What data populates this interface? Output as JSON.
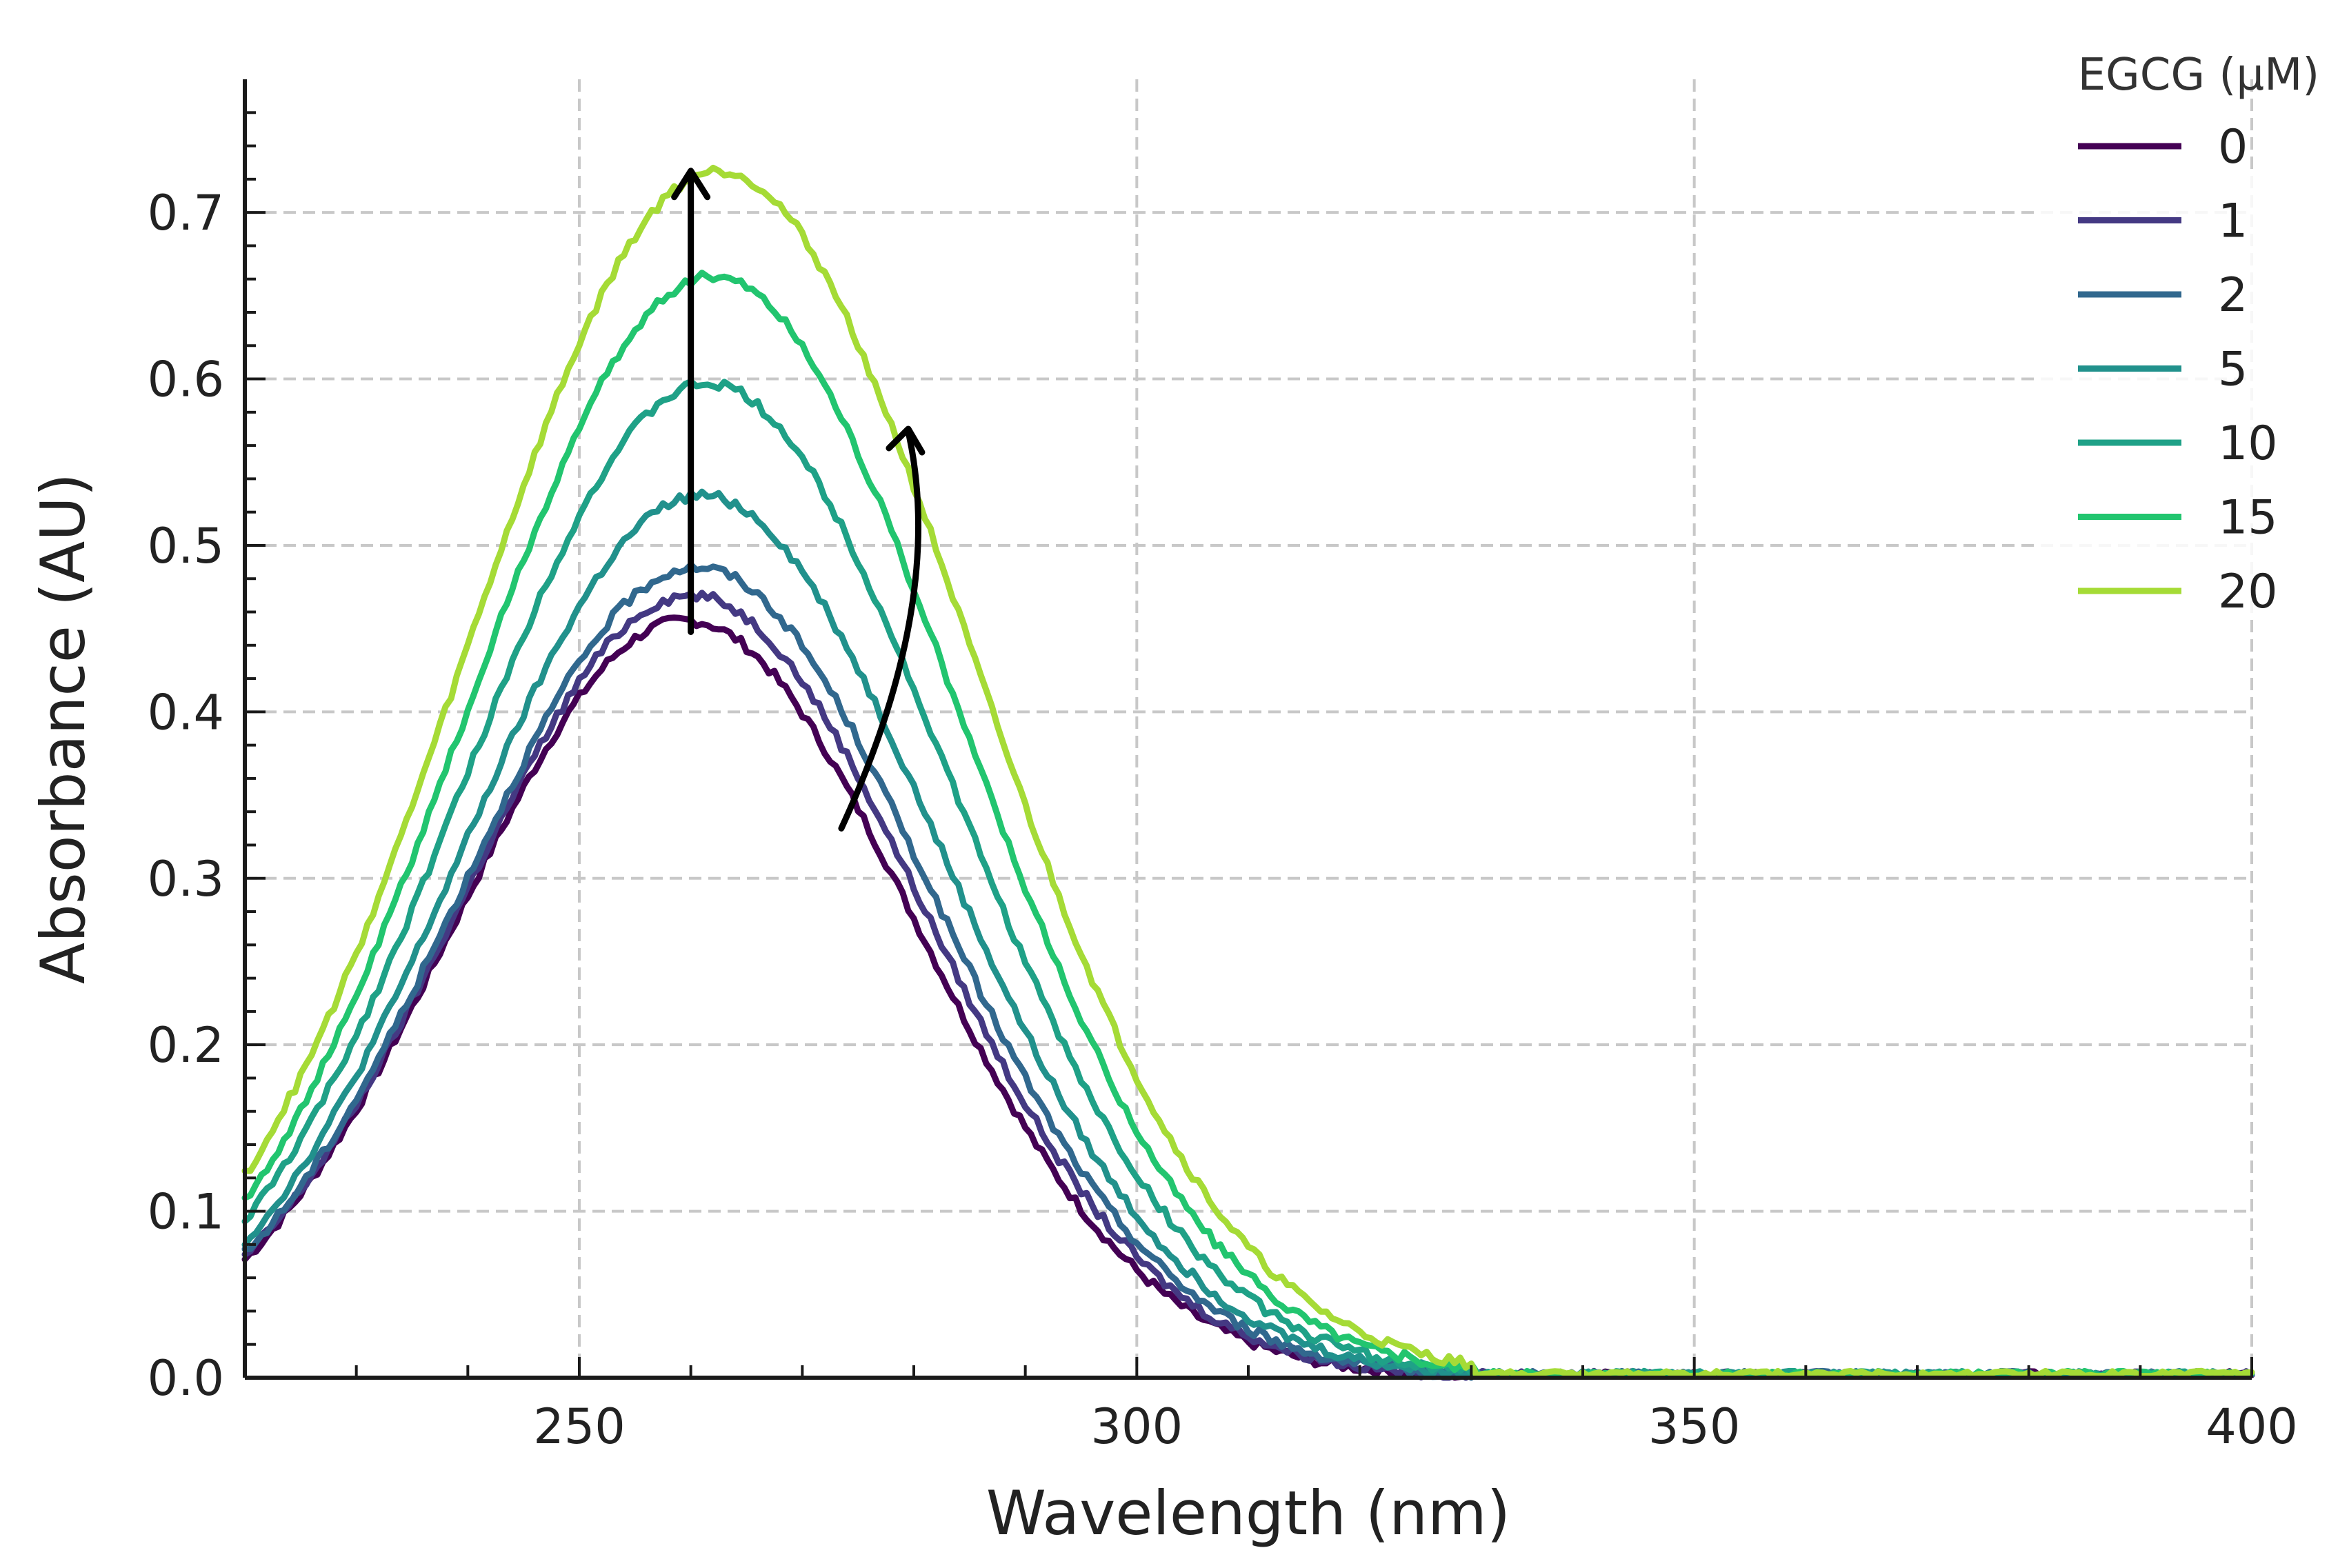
{
  "chart_data": {
    "type": "line",
    "title": "",
    "xlabel": "Wavelength (nm)",
    "ylabel": "Absorbance (AU)",
    "xlim": [
      220,
      400
    ],
    "ylim": [
      0,
      0.78
    ],
    "xticks": [
      250,
      300,
      350,
      400
    ],
    "xtick_labels": [
      "250",
      "300",
      "350",
      "400"
    ],
    "yticks": [
      0.0,
      0.1,
      0.2,
      0.3,
      0.4,
      0.5,
      0.6,
      0.7
    ],
    "ytick_labels": [
      "0.0",
      "0.1",
      "0.2",
      "0.3",
      "0.4",
      "0.5",
      "0.6",
      "0.7"
    ],
    "grid": true,
    "legend": {
      "title": "EGCG (μM)",
      "position": "top-right"
    },
    "peak_model": "gaussian",
    "series": [
      {
        "name": "0",
        "color": "#440154",
        "peak_nm": 259.5,
        "peak_abs": 0.455,
        "width_nm": 20.5
      },
      {
        "name": "1",
        "color": "#443983",
        "peak_nm": 260.0,
        "peak_abs": 0.47,
        "width_nm": 20.7
      },
      {
        "name": "2",
        "color": "#31688e",
        "peak_nm": 260.5,
        "peak_abs": 0.487,
        "width_nm": 20.9
      },
      {
        "name": "5",
        "color": "#21918c",
        "peak_nm": 261.0,
        "peak_abs": 0.53,
        "width_nm": 21.2
      },
      {
        "name": "10",
        "color": "#1fa187",
        "peak_nm": 261.5,
        "peak_abs": 0.597,
        "width_nm": 21.6
      },
      {
        "name": "15",
        "color": "#22c56f",
        "peak_nm": 262.0,
        "peak_abs": 0.662,
        "width_nm": 22.0
      },
      {
        "name": "20",
        "color": "#a5db36",
        "peak_nm": 262.5,
        "peak_abs": 0.725,
        "width_nm": 22.5
      }
    ],
    "annotations": [
      {
        "type": "vertical-arrow",
        "from": [
          260,
          0.448
        ],
        "to": [
          260,
          0.725
        ],
        "meaning": "absorbance increases"
      },
      {
        "type": "curved-arrow",
        "from": [
          273.5,
          0.33
        ],
        "to": [
          279.5,
          0.57
        ],
        "meaning": "red shift"
      }
    ]
  }
}
